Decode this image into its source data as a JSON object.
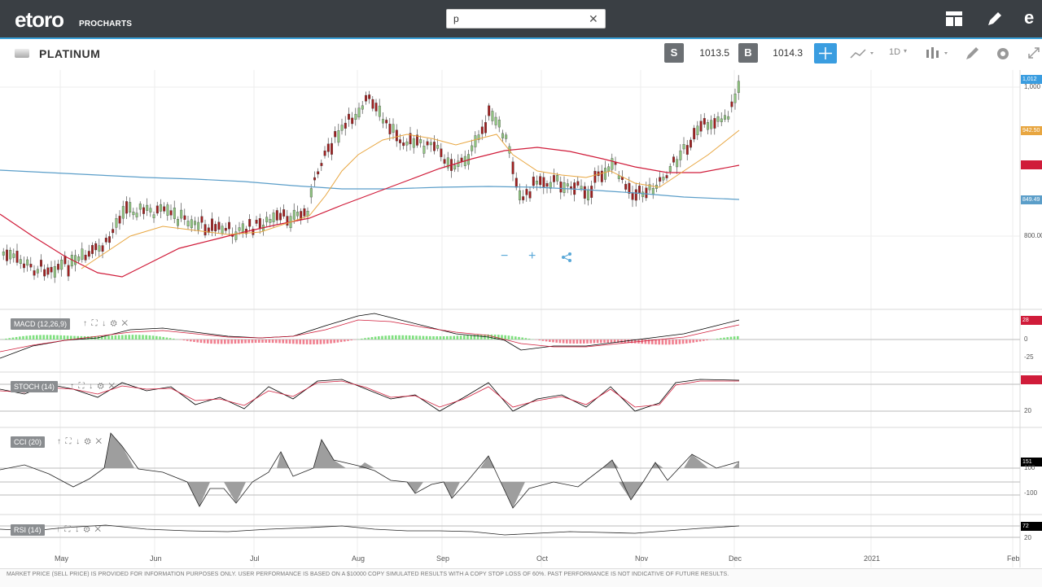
{
  "app": {
    "logo": "etoro",
    "logo_sub": "PROCHARTS"
  },
  "search": {
    "value": "p"
  },
  "instrument": {
    "name": "PLATINUM"
  },
  "trade": {
    "sell_label": "S",
    "sell_price": "1013.5",
    "buy_label": "B",
    "buy_price": "1014.3"
  },
  "timeframe": "1D",
  "zoom": {
    "minus": "−",
    "plus": "+"
  },
  "indicators": {
    "macd": "MACD (12,26,9)",
    "stoch": "STOCH (14)",
    "cci": "CCI (20)",
    "rsi": "RSI (14)"
  },
  "price_axis": {
    "current": "1,012",
    "tick_1000": "1,000",
    "ma_orange": "942.50",
    "ma_blue": "849.49",
    "tick_800": "800.00"
  },
  "macd_axis": {
    "badge": "28",
    "zero": "0",
    "neg": "-25"
  },
  "stoch_axis": {
    "low": "20"
  },
  "cci_axis": {
    "badge": "151",
    "hundred": "100",
    "neg": "-100"
  },
  "rsi_axis": {
    "badge": "72",
    "low": "20"
  },
  "x_axis": {
    "ticks": [
      "May",
      "Jun",
      "Jul",
      "Aug",
      "Sep",
      "Oct",
      "Nov",
      "Dec",
      "2021",
      "Feb"
    ]
  },
  "footer": "MARKET PRICE (SELL PRICE) IS PROVIDED FOR INFORMATION PURPOSES ONLY. USER PERFORMANCE IS BASED ON A $10000 COPY SIMULATED RESULTS WITH A COPY STOP LOSS OF 60%. PAST PERFORMANCE IS NOT INDICATIVE OF FUTURE RESULTS.",
  "colors": {
    "accent": "#3a9de0",
    "bull": "#8fc480",
    "bear": "#a02020",
    "ma_short": "#e8a640",
    "ma_mid": "#d01c3a",
    "ma_long": "#5b9ec9"
  },
  "icons": [
    "layout-icon",
    "edit-icon",
    "crosshair-icon",
    "chart-type-icon",
    "indicators-icon",
    "draw-icon",
    "settings-icon",
    "fullscreen-icon",
    "share-icon"
  ]
}
